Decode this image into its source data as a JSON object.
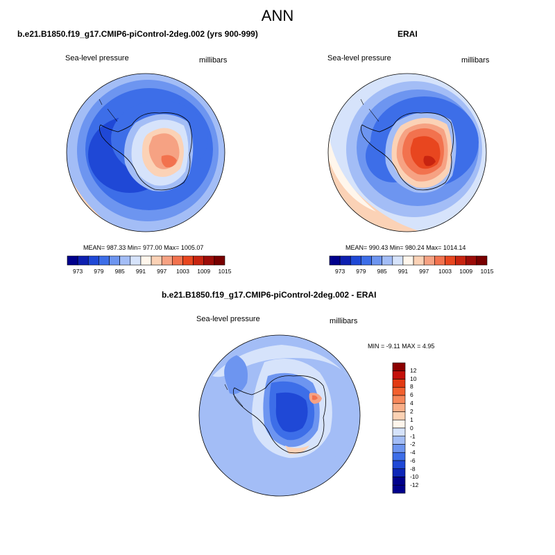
{
  "title": "ANN",
  "panels": [
    {
      "id": "model",
      "title": "b.e21.B1850.f19_g17.CMIP6-piControl-2deg.002 (yrs 900-999)",
      "variable": "Sea-level pressure",
      "units": "millibars",
      "stats": "MEAN= 987.33  Min= 977.00  Max= 1005.07"
    },
    {
      "id": "obs",
      "title": "ERAI",
      "variable": "Sea-level pressure",
      "units": "millibars",
      "stats": "MEAN= 990.43  Min= 980.24  Max= 1014.14"
    },
    {
      "id": "diff",
      "title": "b.e21.B1850.f19_g17.CMIP6-piControl-2deg.002 - ERAI",
      "variable": "Sea-level pressure",
      "units": "millibars",
      "stats": "MIN =  -9.11 MAX =   4.95"
    }
  ],
  "abs_colorbar": {
    "labels": [
      "973",
      "979",
      "985",
      "991",
      "997",
      "1003",
      "1009",
      "1015"
    ],
    "colors": [
      "#00008c",
      "#0d1fb0",
      "#1f48d6",
      "#3d6ee8",
      "#6d95f0",
      "#a3bdf6",
      "#d6e3fb",
      "#fff6ec",
      "#fbd2b6",
      "#f6a283",
      "#f2724e",
      "#e8461f",
      "#c82410",
      "#9c0c08",
      "#780000"
    ]
  },
  "diff_colorbar": {
    "labels": [
      "12",
      "10",
      "8",
      "6",
      "4",
      "2",
      "1",
      "0",
      "-1",
      "-2",
      "-4",
      "-6",
      "-8",
      "-10",
      "-12"
    ],
    "colors": [
      "#8c0000",
      "#c4100a",
      "#e23a12",
      "#f2602e",
      "#f6875a",
      "#f9ae88",
      "#fcd2b4",
      "#fff6ec",
      "#d6e3fb",
      "#a3bdf6",
      "#6d95f0",
      "#3d6ee8",
      "#1f48d6",
      "#0d26b8",
      "#00008c"
    ]
  }
}
